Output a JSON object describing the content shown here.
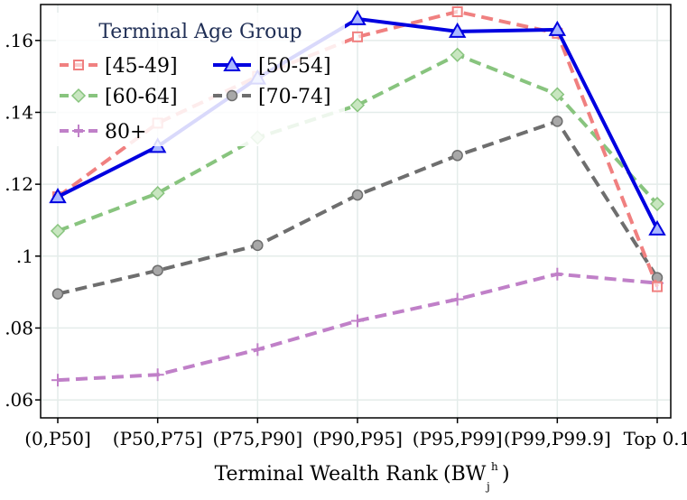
{
  "chart_data": {
    "type": "line",
    "title": "",
    "xlabel": "Terminal Wealth Rank",
    "xlabel_symbol": "(BW",
    "xlabel_superscript": "h",
    "xlabel_subscript": "j",
    "xlabel_close": ")",
    "ylabel": "",
    "ylim": [
      0.055,
      0.17
    ],
    "yticks": [
      ".06",
      ".08",
      ".1",
      ".12",
      ".14",
      ".16"
    ],
    "ytick_values": [
      0.06,
      0.08,
      0.1,
      0.12,
      0.14,
      0.16
    ],
    "categories": [
      "(0,P50]",
      "(P50,P75]",
      "(P75,P90]",
      "(P90,P95]",
      "(P95,P99]",
      "(P99,P99.9]",
      "Top 0.1"
    ],
    "grid": true,
    "legend": {
      "title": "Terminal Age Group",
      "placement": "top-left"
    },
    "series": [
      {
        "name": "[45-49]",
        "values": [
          0.1165,
          0.137,
          0.15,
          0.161,
          0.168,
          0.162,
          0.0915
        ],
        "color": "#f08080",
        "marker": "square",
        "style": "dashed"
      },
      {
        "name": "[50-54]",
        "values": [
          0.1165,
          0.1305,
          0.1495,
          0.166,
          0.1625,
          0.163,
          0.1075
        ],
        "color": "#0000e0",
        "marker": "triangle",
        "style": "solid"
      },
      {
        "name": "[60-64]",
        "values": [
          0.107,
          0.1175,
          0.133,
          0.142,
          0.156,
          0.145,
          0.1145
        ],
        "color": "#88c47e",
        "marker": "diamond",
        "style": "dashed"
      },
      {
        "name": "[70-74]",
        "values": [
          0.0895,
          0.096,
          0.103,
          0.117,
          0.128,
          0.1375,
          0.094
        ],
        "color": "#6e6e6e",
        "marker": "circle",
        "style": "dashed"
      },
      {
        "name": "80+",
        "values": [
          0.0655,
          0.067,
          0.074,
          0.082,
          0.088,
          0.095,
          0.0925
        ],
        "color": "#c080c8",
        "marker": "plus",
        "style": "dashed"
      }
    ]
  }
}
